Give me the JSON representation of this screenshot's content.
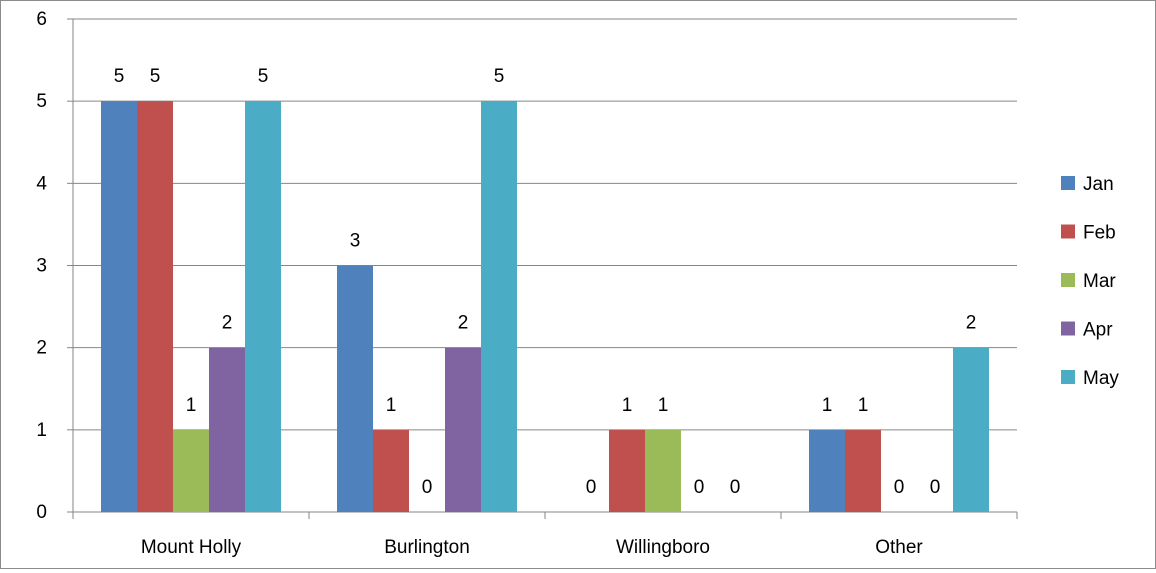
{
  "chart_data": {
    "type": "bar",
    "title": "",
    "xlabel": "",
    "ylabel": "",
    "ylim": [
      0,
      6
    ],
    "yticks": [
      "0",
      "1",
      "2",
      "3",
      "4",
      "5",
      "6"
    ],
    "grid": true,
    "legend_position": "right",
    "categories": [
      "Mount Holly",
      "Burlington",
      "Willingboro",
      "Other"
    ],
    "series": [
      {
        "name": "Jan",
        "color": "#4F81BD",
        "values": [
          5,
          3,
          0,
          1
        ]
      },
      {
        "name": "Feb",
        "color": "#C0504D",
        "values": [
          5,
          1,
          1,
          1
        ]
      },
      {
        "name": "Mar",
        "color": "#9BBB59",
        "values": [
          1,
          0,
          1,
          0
        ]
      },
      {
        "name": "Apr",
        "color": "#8064A2",
        "values": [
          2,
          2,
          0,
          0
        ]
      },
      {
        "name": "May",
        "color": "#4BACC6",
        "values": [
          5,
          5,
          0,
          2
        ]
      }
    ],
    "data_labels": true
  }
}
